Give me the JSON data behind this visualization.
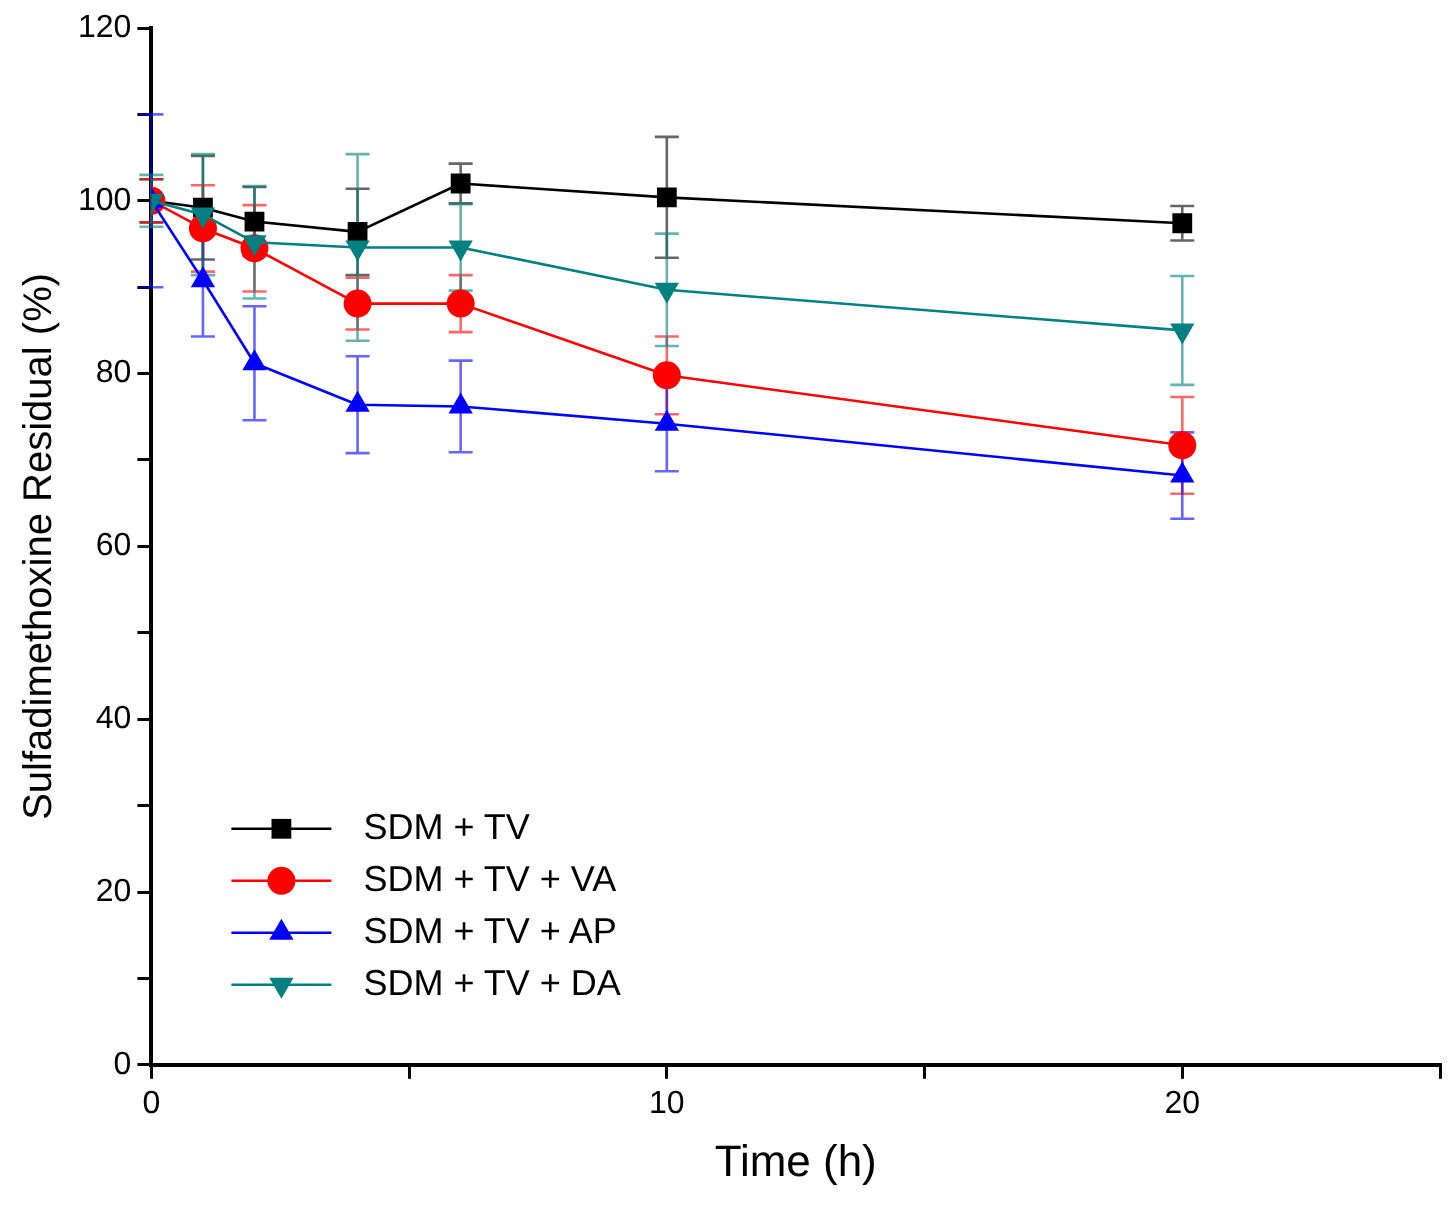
{
  "chart_data": {
    "type": "line",
    "xlabel": "Time (h)",
    "ylabel": "Sulfadimethoxine Residual (%)",
    "x": [
      0,
      1,
      2,
      4,
      6,
      10,
      20
    ],
    "xlim": [
      0,
      25
    ],
    "xticks": [
      0,
      {
        "value": 5,
        "label": null
      },
      10,
      {
        "value": 15,
        "label": null
      },
      20,
      {
        "value": 25,
        "label": null
      }
    ],
    "ylim": [
      0,
      120
    ],
    "yticks": [
      0,
      {
        "value": 10,
        "label": null
      },
      20,
      {
        "value": 30,
        "label": null
      },
      40,
      {
        "value": 50,
        "label": null
      },
      60,
      {
        "value": 70,
        "label": null
      },
      80,
      {
        "value": 90,
        "label": null
      },
      100,
      {
        "value": 110,
        "label": null
      },
      120
    ],
    "grid": false,
    "legend": "bottom left",
    "line_style": "solid",
    "series": [
      {
        "name": "SDM + TV",
        "color": "#000000",
        "marker": "square",
        "values": [
          100,
          99.2,
          97.6,
          96.4,
          102,
          100.4,
          97.4
        ],
        "errors": [
          2.5,
          6,
          4,
          5,
          2.3,
          7,
          2
        ]
      },
      {
        "name": "SDM + TV + VA",
        "color": "#ff0000",
        "marker": "circle",
        "values": [
          100,
          96.8,
          94.5,
          88.1,
          88.1,
          79.8,
          71.7
        ],
        "errors": [
          2.5,
          5,
          5,
          3,
          3.3,
          4.5,
          5.6
        ]
      },
      {
        "name": "SDM + TV + AP",
        "color": "#0000ff",
        "marker": "triangle",
        "values": [
          100,
          90.8,
          81.2,
          76.4,
          76.2,
          74.2,
          68.2
        ],
        "errors": [
          10,
          6.5,
          6.6,
          5.6,
          5.3,
          5.5,
          5
        ]
      },
      {
        "name": "SDM + TV + DA",
        "color": "#008080",
        "marker": "triangle-down",
        "values": [
          100,
          98.4,
          95.2,
          94.6,
          94.6,
          89.7,
          85
        ],
        "errors": [
          3,
          7,
          6.5,
          10.8,
          5,
          6.5,
          6.3
        ]
      }
    ]
  }
}
